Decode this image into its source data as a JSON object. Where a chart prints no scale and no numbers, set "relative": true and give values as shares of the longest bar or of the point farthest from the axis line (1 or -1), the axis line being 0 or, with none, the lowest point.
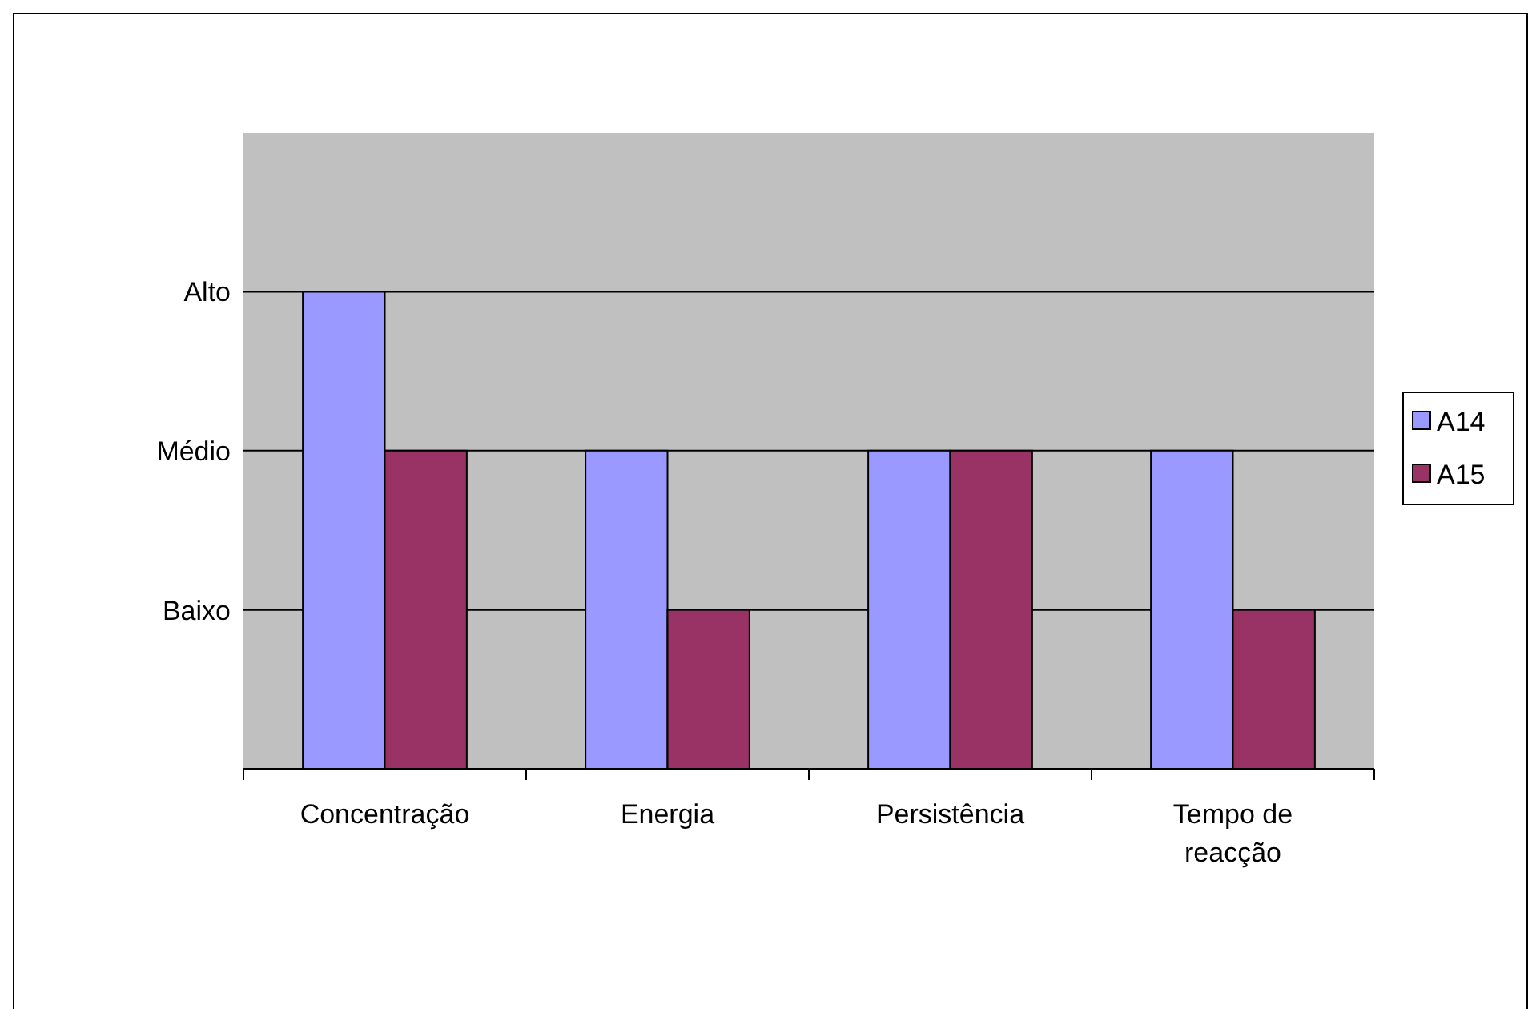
{
  "chart_data": {
    "type": "bar",
    "categories": [
      "Concentração",
      "Energia",
      "Persistência",
      "Tempo de reacção"
    ],
    "series": [
      {
        "name": "A14",
        "color": "#9999ff",
        "values": [
          1,
          0.667,
          0.667,
          0.667
        ]
      },
      {
        "name": "A15",
        "color": "#993366",
        "values": [
          0.667,
          0.333,
          0.667,
          0.333
        ]
      }
    ],
    "relative": true,
    "ref_lines": [
      {
        "axis": "y",
        "value": 0.333,
        "label": "Baixo",
        "color": "#000000"
      },
      {
        "axis": "y",
        "value": 0.667,
        "label": "Médio",
        "color": "#000000"
      },
      {
        "axis": "y",
        "value": 1,
        "label": "Alto",
        "color": "#000000"
      }
    ],
    "legend": "right"
  }
}
